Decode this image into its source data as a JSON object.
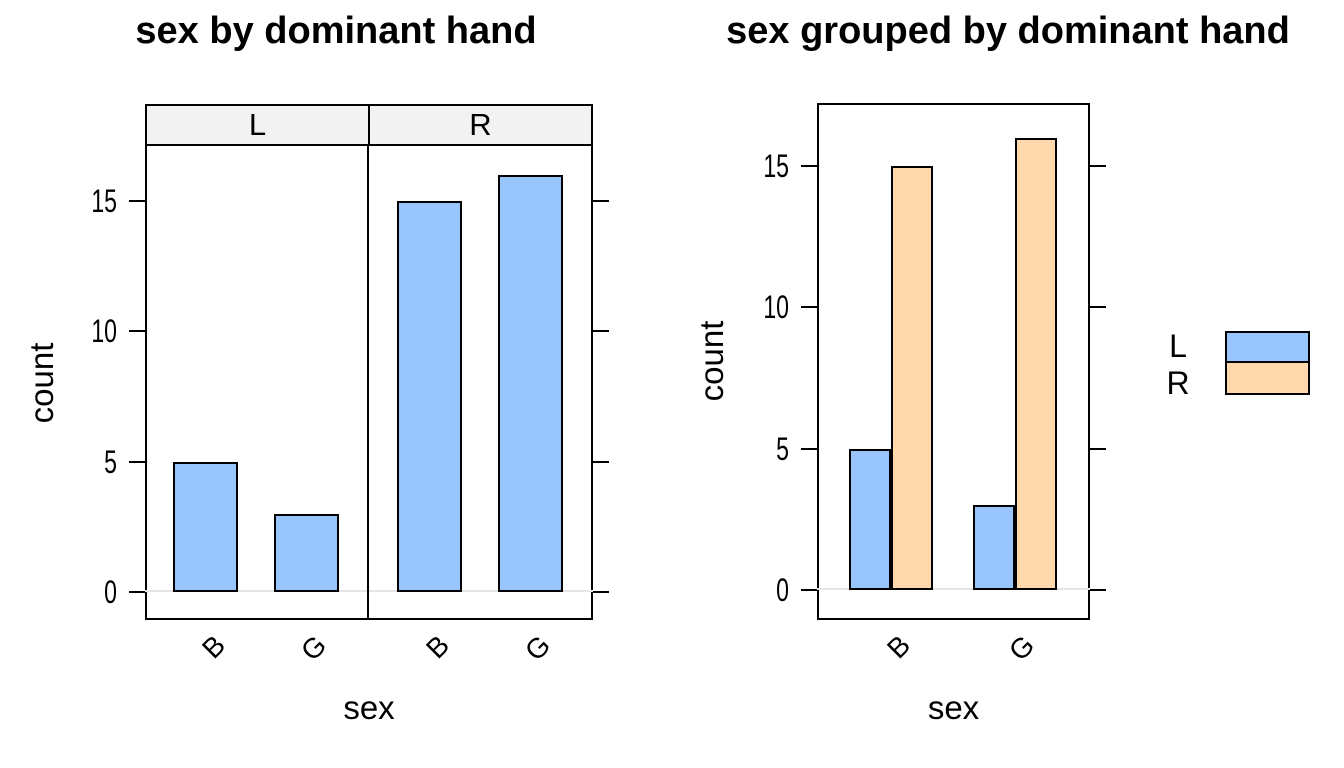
{
  "chart_data": [
    {
      "type": "bar",
      "variant": "faceted",
      "title": "sex by dominant hand",
      "xlabel": "sex",
      "ylabel": "count",
      "facets": [
        {
          "label": "L",
          "categories": [
            "B",
            "G"
          ],
          "values": [
            5,
            3
          ]
        },
        {
          "label": "R",
          "categories": [
            "B",
            "G"
          ],
          "values": [
            15,
            16
          ]
        }
      ],
      "yticks": [
        0,
        5,
        10,
        15
      ],
      "ylim": [
        -1.1,
        17.1
      ],
      "grid": "zero-line-only",
      "bar_fill": "#98C6FC",
      "bar_stroke": "#000000",
      "strip_fill": "#F2F2F2",
      "zero_line_color": "#E6E6E6",
      "legend_position": "none"
    },
    {
      "type": "bar",
      "variant": "grouped",
      "title": "sex grouped by dominant hand",
      "xlabel": "sex",
      "ylabel": "count",
      "categories": [
        "B",
        "G"
      ],
      "series": [
        {
          "name": "L",
          "fill": "#98C6FC",
          "values": [
            5,
            3
          ]
        },
        {
          "name": "R",
          "fill": "#FFD9AC",
          "values": [
            15,
            16
          ]
        }
      ],
      "yticks": [
        0,
        5,
        10,
        15
      ],
      "ylim": [
        -1.1,
        17.2
      ],
      "grid": "zero-line-only",
      "bar_stroke": "#000000",
      "zero_line_color": "#E6E6E6",
      "legend": {
        "position": "right",
        "labels": [
          "L",
          "R"
        ],
        "colors": [
          "#98C6FC",
          "#FFD9AC"
        ]
      }
    }
  ]
}
